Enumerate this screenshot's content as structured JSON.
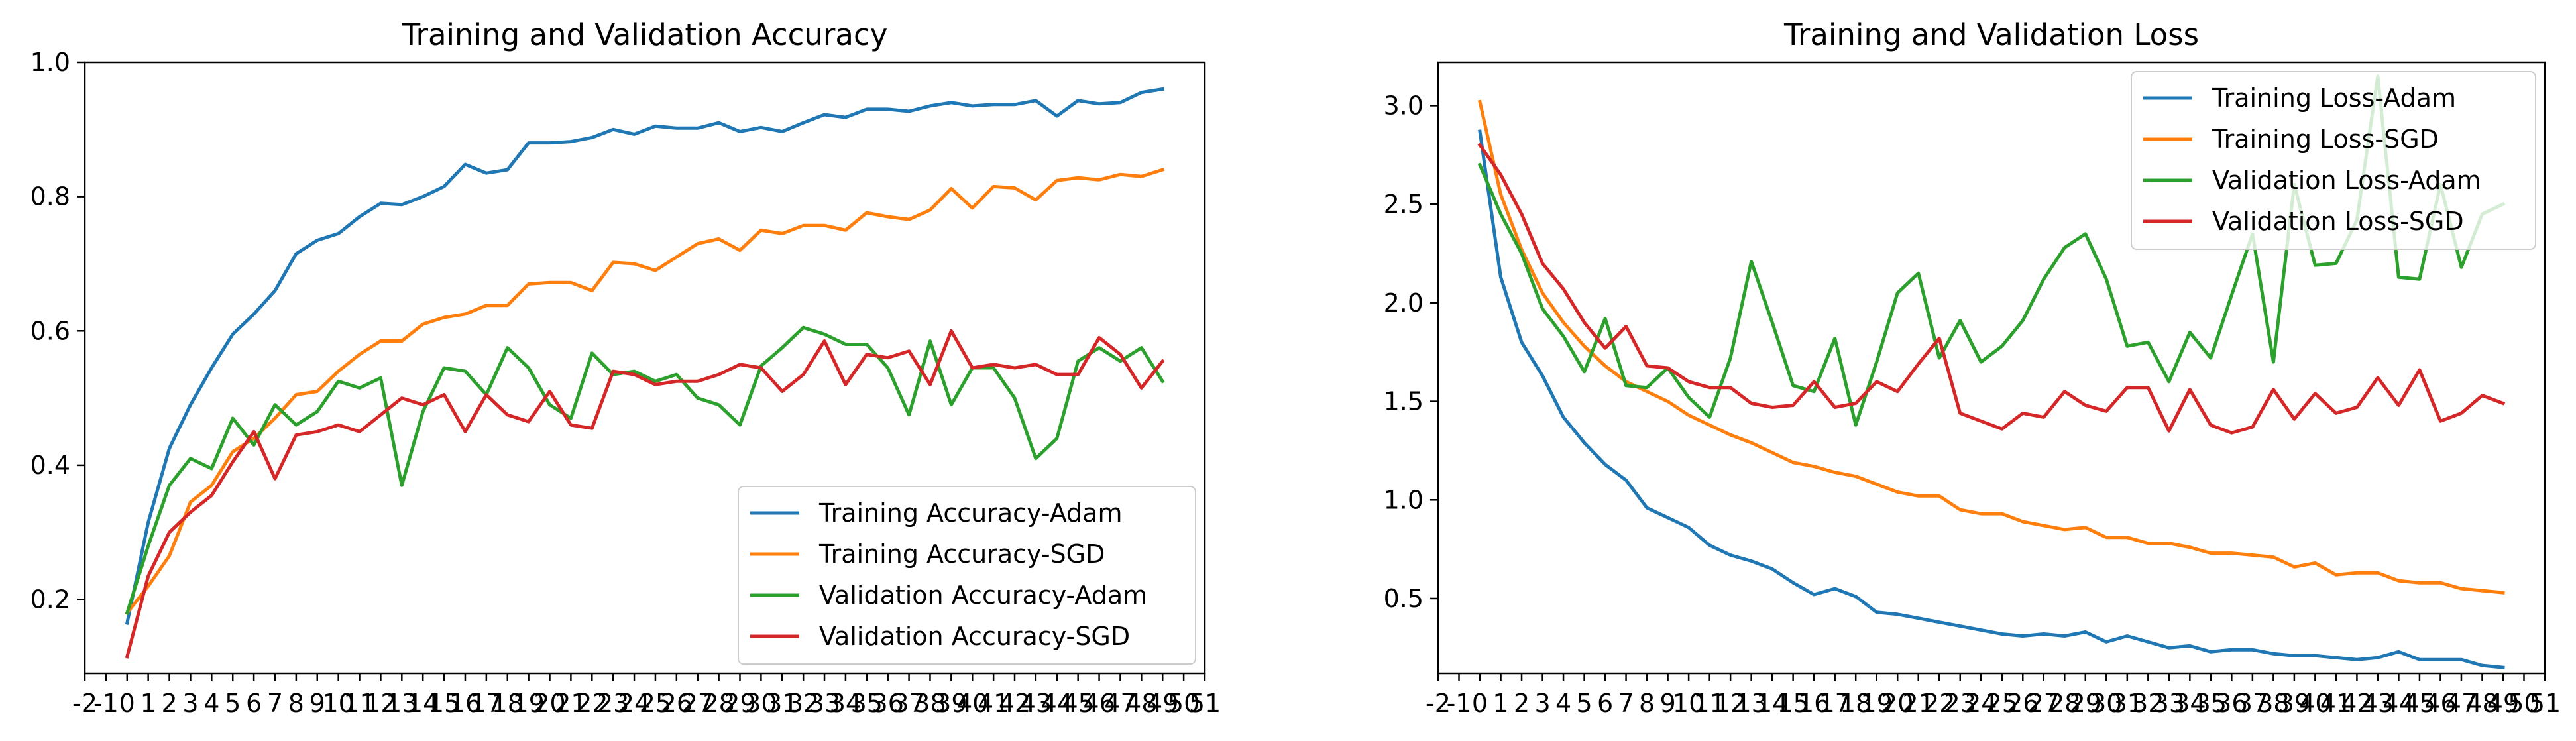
{
  "chart_data": [
    {
      "type": "line",
      "title": "Training and Validation Accuracy",
      "xlabel": "",
      "ylabel": "",
      "xlim": [
        -2,
        51
      ],
      "ylim": [
        0.09,
        1.0
      ],
      "xticks": [
        "-2",
        "-1",
        "0",
        "1",
        "2",
        "3",
        "4",
        "5",
        "6",
        "7",
        "8",
        "9",
        "10",
        "11",
        "12",
        "13",
        "14",
        "15",
        "16",
        "17",
        "18",
        "19",
        "20",
        "21",
        "22",
        "23",
        "24",
        "25",
        "26",
        "27",
        "28",
        "29",
        "30",
        "31",
        "32",
        "33",
        "34",
        "35",
        "36",
        "37",
        "38",
        "39",
        "40",
        "41",
        "42",
        "43",
        "44",
        "45",
        "46",
        "47",
        "48",
        "49",
        "50",
        "51"
      ],
      "yticks": [
        "0.2",
        "0.4",
        "0.6",
        "0.8",
        "1.0"
      ],
      "grid": false,
      "legend_position": "lower-right",
      "series": [
        {
          "name": "Training Accuracy-Adam",
          "color": "#1f77b4",
          "values": [
            0.165,
            0.315,
            0.425,
            0.49,
            0.545,
            0.595,
            0.625,
            0.66,
            0.715,
            0.735,
            0.745,
            0.77,
            0.79,
            0.788,
            0.8,
            0.815,
            0.848,
            0.835,
            0.84,
            0.88,
            0.88,
            0.882,
            0.888,
            0.9,
            0.893,
            0.905,
            0.902,
            0.902,
            0.91,
            0.897,
            0.903,
            0.897,
            0.91,
            0.922,
            0.918,
            0.93,
            0.93,
            0.927,
            0.935,
            0.94,
            0.935,
            0.937,
            0.937,
            0.943,
            0.92,
            0.943,
            0.938,
            0.94,
            0.955,
            0.96
          ]
        },
        {
          "name": "Training Accuracy-SGD",
          "color": "#ff7f0e",
          "values": [
            0.18,
            0.22,
            0.265,
            0.345,
            0.37,
            0.42,
            0.44,
            0.47,
            0.505,
            0.51,
            0.54,
            0.565,
            0.585,
            0.585,
            0.61,
            0.62,
            0.625,
            0.638,
            0.638,
            0.67,
            0.672,
            0.672,
            0.66,
            0.702,
            0.7,
            0.69,
            0.71,
            0.73,
            0.737,
            0.72,
            0.75,
            0.745,
            0.757,
            0.757,
            0.75,
            0.776,
            0.77,
            0.766,
            0.78,
            0.812,
            0.783,
            0.815,
            0.813,
            0.795,
            0.824,
            0.828,
            0.825,
            0.833,
            0.83,
            0.84
          ]
        },
        {
          "name": "Validation Accuracy-Adam",
          "color": "#2ca02c",
          "values": [
            0.18,
            0.28,
            0.37,
            0.41,
            0.395,
            0.47,
            0.43,
            0.49,
            0.46,
            0.48,
            0.525,
            0.515,
            0.53,
            0.37,
            0.48,
            0.545,
            0.54,
            0.505,
            0.575,
            0.545,
            0.49,
            0.47,
            0.567,
            0.535,
            0.54,
            0.525,
            0.535,
            0.5,
            0.49,
            0.46,
            0.548,
            0.575,
            0.605,
            0.595,
            0.58,
            0.58,
            0.545,
            0.475,
            0.585,
            0.49,
            0.545,
            0.545,
            0.5,
            0.41,
            0.44,
            0.555,
            0.575,
            0.555,
            0.575,
            0.525
          ]
        },
        {
          "name": "Validation Accuracy-SGD",
          "color": "#d62728",
          "values": [
            0.115,
            0.235,
            0.3,
            0.33,
            0.355,
            0.405,
            0.45,
            0.38,
            0.445,
            0.45,
            0.46,
            0.45,
            0.475,
            0.5,
            0.49,
            0.505,
            0.45,
            0.505,
            0.475,
            0.465,
            0.51,
            0.46,
            0.455,
            0.54,
            0.535,
            0.52,
            0.525,
            0.525,
            0.535,
            0.55,
            0.545,
            0.51,
            0.535,
            0.585,
            0.52,
            0.565,
            0.56,
            0.57,
            0.52,
            0.6,
            0.545,
            0.55,
            0.545,
            0.55,
            0.535,
            0.535,
            0.59,
            0.565,
            0.515,
            0.555
          ]
        }
      ]
    },
    {
      "type": "line",
      "title": "Training and Validation Loss",
      "xlabel": "",
      "ylabel": "",
      "xlim": [
        -2,
        51
      ],
      "ylim": [
        0.12,
        3.22
      ],
      "xticks": [
        "-2",
        "-1",
        "0",
        "1",
        "2",
        "3",
        "4",
        "5",
        "6",
        "7",
        "8",
        "9",
        "10",
        "11",
        "12",
        "13",
        "14",
        "15",
        "16",
        "17",
        "18",
        "19",
        "20",
        "21",
        "22",
        "23",
        "24",
        "25",
        "26",
        "27",
        "28",
        "29",
        "30",
        "31",
        "32",
        "33",
        "34",
        "35",
        "36",
        "37",
        "38",
        "39",
        "40",
        "41",
        "42",
        "43",
        "44",
        "45",
        "46",
        "47",
        "48",
        "49",
        "50",
        "51"
      ],
      "yticks": [
        "0.5",
        "1.0",
        "1.5",
        "2.0",
        "2.5",
        "3.0"
      ],
      "grid": false,
      "legend_position": "upper-right",
      "series": [
        {
          "name": "Training Loss-Adam",
          "color": "#1f77b4",
          "values": [
            2.87,
            2.13,
            1.8,
            1.63,
            1.42,
            1.29,
            1.18,
            1.1,
            0.96,
            0.91,
            0.86,
            0.77,
            0.72,
            0.69,
            0.65,
            0.58,
            0.52,
            0.55,
            0.51,
            0.43,
            0.42,
            0.4,
            0.38,
            0.36,
            0.34,
            0.32,
            0.31,
            0.32,
            0.31,
            0.33,
            0.28,
            0.31,
            0.28,
            0.25,
            0.26,
            0.23,
            0.24,
            0.24,
            0.22,
            0.21,
            0.21,
            0.2,
            0.19,
            0.2,
            0.23,
            0.19,
            0.19,
            0.19,
            0.16,
            0.15
          ]
        },
        {
          "name": "Training Loss-SGD",
          "color": "#ff7f0e",
          "values": [
            3.02,
            2.55,
            2.27,
            2.05,
            1.9,
            1.78,
            1.68,
            1.6,
            1.55,
            1.5,
            1.43,
            1.38,
            1.33,
            1.29,
            1.24,
            1.19,
            1.17,
            1.14,
            1.12,
            1.08,
            1.04,
            1.02,
            1.02,
            0.95,
            0.93,
            0.93,
            0.89,
            0.87,
            0.85,
            0.86,
            0.81,
            0.81,
            0.78,
            0.78,
            0.76,
            0.73,
            0.73,
            0.72,
            0.71,
            0.66,
            0.68,
            0.62,
            0.63,
            0.63,
            0.59,
            0.58,
            0.58,
            0.55,
            0.54,
            0.53
          ]
        },
        {
          "name": "Validation Loss-Adam",
          "color": "#2ca02c",
          "values": [
            2.7,
            2.45,
            2.25,
            1.97,
            1.83,
            1.65,
            1.92,
            1.58,
            1.57,
            1.67,
            1.52,
            1.42,
            1.72,
            2.21,
            1.9,
            1.58,
            1.55,
            1.82,
            1.38,
            1.7,
            2.05,
            2.15,
            1.72,
            1.91,
            1.7,
            1.78,
            1.91,
            2.12,
            2.28,
            2.35,
            2.12,
            1.78,
            1.8,
            1.6,
            1.85,
            1.72,
            2.04,
            2.35,
            1.7,
            2.6,
            2.19,
            2.2,
            2.42,
            3.15,
            2.13,
            2.12,
            2.6,
            2.18,
            2.45,
            2.5
          ]
        },
        {
          "name": "Validation Loss-SGD",
          "color": "#d62728",
          "values": [
            2.8,
            2.65,
            2.45,
            2.2,
            2.07,
            1.9,
            1.77,
            1.88,
            1.68,
            1.67,
            1.6,
            1.57,
            1.57,
            1.49,
            1.47,
            1.48,
            1.6,
            1.47,
            1.49,
            1.6,
            1.55,
            1.69,
            1.82,
            1.44,
            1.4,
            1.36,
            1.44,
            1.42,
            1.55,
            1.48,
            1.45,
            1.57,
            1.57,
            1.35,
            1.56,
            1.38,
            1.34,
            1.37,
            1.56,
            1.41,
            1.54,
            1.44,
            1.47,
            1.62,
            1.48,
            1.66,
            1.4,
            1.44,
            1.53,
            1.49
          ]
        }
      ]
    }
  ]
}
